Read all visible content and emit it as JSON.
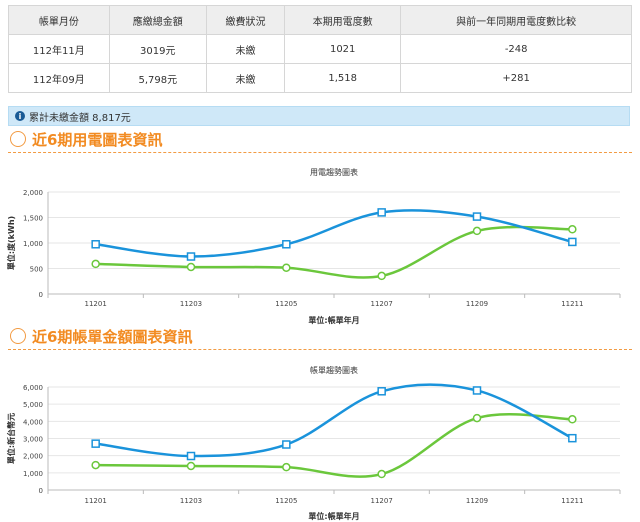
{
  "bill_table": {
    "headers": [
      "帳單月份",
      "應繳總金額",
      "繳費狀況",
      "本期用電度數",
      "與前一年同期用電度數比較"
    ],
    "rows": [
      [
        "112年11月",
        "3019元",
        "未繳",
        "1021",
        "-248"
      ],
      [
        "112年09月",
        "5,798元",
        "未繳",
        "1,518",
        "+281"
      ]
    ]
  },
  "notice": {
    "text": "累計未繳金額 8,817元",
    "icon": "info-icon"
  },
  "sections": {
    "usage_title": "近6期用電圖表資訊",
    "amount_title": "近6期帳單金額圖表資訊"
  },
  "colors": {
    "current": "#1a93db",
    "previous": "#6bc73c",
    "accent": "#f28b22"
  },
  "chart_data": [
    {
      "type": "line",
      "title": "用電趨勢圖表",
      "xlabel": "單位:帳單年月",
      "ylabel": "單位:度(kWh)",
      "categories": [
        "11201",
        "11203",
        "11205",
        "11207",
        "11209",
        "11211"
      ],
      "ylim": [
        0,
        2000
      ],
      "yticks": [
        "0",
        "500",
        "1,000",
        "1,500",
        "2,000"
      ],
      "series": [
        {
          "marker": "square",
          "values": [
            975,
            735,
            975,
            1600,
            1518,
            1021
          ]
        },
        {
          "marker": "circle",
          "values": [
            590,
            530,
            515,
            355,
            1237,
            1269
          ]
        }
      ]
    },
    {
      "type": "line",
      "title": "帳單趨勢圖表",
      "xlabel": "單位:帳單年月",
      "ylabel": "單位:新台幣元",
      "categories": [
        "11201",
        "11203",
        "11205",
        "11207",
        "11209",
        "11211"
      ],
      "ylim": [
        0,
        6000
      ],
      "yticks": [
        "0",
        "1,000",
        "2,000",
        "3,000",
        "4,000",
        "5,000",
        "6,000"
      ],
      "series": [
        {
          "marker": "square",
          "values": [
            2700,
            1980,
            2650,
            5750,
            5798,
            3019
          ]
        },
        {
          "marker": "circle",
          "values": [
            1450,
            1400,
            1330,
            930,
            4190,
            4120
          ]
        }
      ]
    }
  ]
}
